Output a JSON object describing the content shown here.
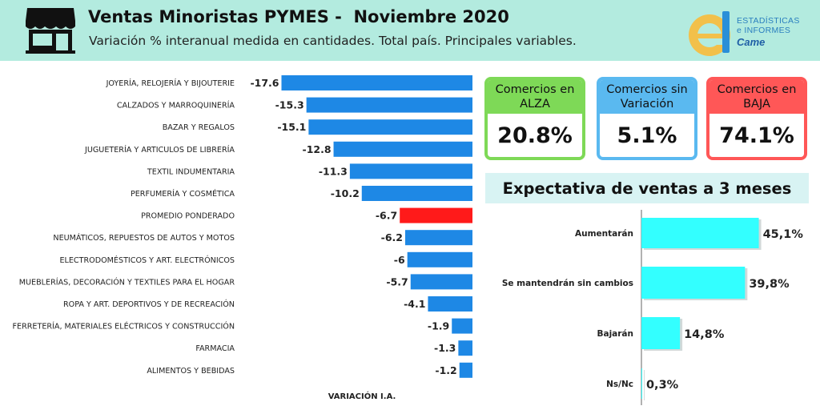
{
  "header": {
    "title": "Ventas Minoristas PYMES -  Noviembre 2020",
    "subtitle": "Variación % interanual medida en cantidades. Total país. Principales variables.",
    "logo_line1": "ESTADÍSTICAS",
    "logo_line2": "e INFORMES",
    "logo_brand": "Came",
    "icon": "store-icon"
  },
  "colors": {
    "header_bg": "#b3ebdf",
    "bar_blue": "#1e88e5",
    "bar_highlight": "#ff1a1a",
    "expect_bar": "#33ffff",
    "alza": "#7ed957",
    "sin_variacion": "#5ab9f0",
    "baja": "#ff5757"
  },
  "cards": {
    "alza": {
      "label": "Comercios en ALZA",
      "value": "20.8%"
    },
    "sin": {
      "label": "Comercios sin Variación",
      "value": "5.1%"
    },
    "baja": {
      "label": "Comercios en BAJA",
      "value": "74.1%"
    }
  },
  "expectativa": {
    "title": "Expectativa de ventas a 3 meses"
  },
  "chart_data": [
    {
      "type": "bar",
      "orientation": "horizontal",
      "xlabel": "VARIACIÓN I.A.",
      "highlight": "PROMEDIO PONDERADO",
      "categories": [
        "JOYERÍA, RELOJERÍA Y BIJOUTERIE",
        "CALZADOS Y MARROQUINERÍA",
        "BAZAR Y REGALOS",
        "JUGUETERÍA Y ARTICULOS DE LIBRERÍA",
        "TEXTIL INDUMENTARIA",
        "PERFUMERÍA Y COSMÉTICA",
        "PROMEDIO PONDERADO",
        "NEUMÁTICOS, REPUESTOS DE AUTOS Y MOTOS",
        "ELECTRODOMÉSTICOS Y ART. ELECTRÓNICOS",
        "MUEBLERÍAS, DECORACIÓN Y TEXTILES PARA EL HOGAR",
        "ROPA Y ART. DEPORTIVOS Y DE RECREACIÓN",
        "FERRETERÍA, MATERIALES ELÉCTRICOS Y CONSTRUCCIÓN",
        "FARMACIA",
        "ALIMENTOS Y BEBIDAS"
      ],
      "values": [
        -17.6,
        -15.3,
        -15.1,
        -12.8,
        -11.3,
        -10.2,
        -6.7,
        -6.2,
        -6,
        -5.7,
        -4.1,
        -1.9,
        -1.3,
        -1.2
      ],
      "labels": [
        "-17.6",
        "-15.3",
        "-15.1",
        "-12.8",
        "-11.3",
        "-10.2",
        "-6.7",
        "-6.2",
        "-6",
        "-5.7",
        "-4.1",
        "-1.9",
        "-1.3",
        "-1.2"
      ],
      "xlim": [
        -18.3,
        0
      ]
    },
    {
      "type": "bar",
      "orientation": "horizontal",
      "categories": [
        "Aumentarán",
        "Se mantendrán sin cambios",
        "Bajarán",
        "Ns/Nc"
      ],
      "values": [
        45.1,
        39.8,
        14.8,
        0.3
      ],
      "labels": [
        "45,1%",
        "39,8%",
        "14,8%",
        "0,3%"
      ],
      "xlim": [
        0,
        100
      ]
    }
  ]
}
